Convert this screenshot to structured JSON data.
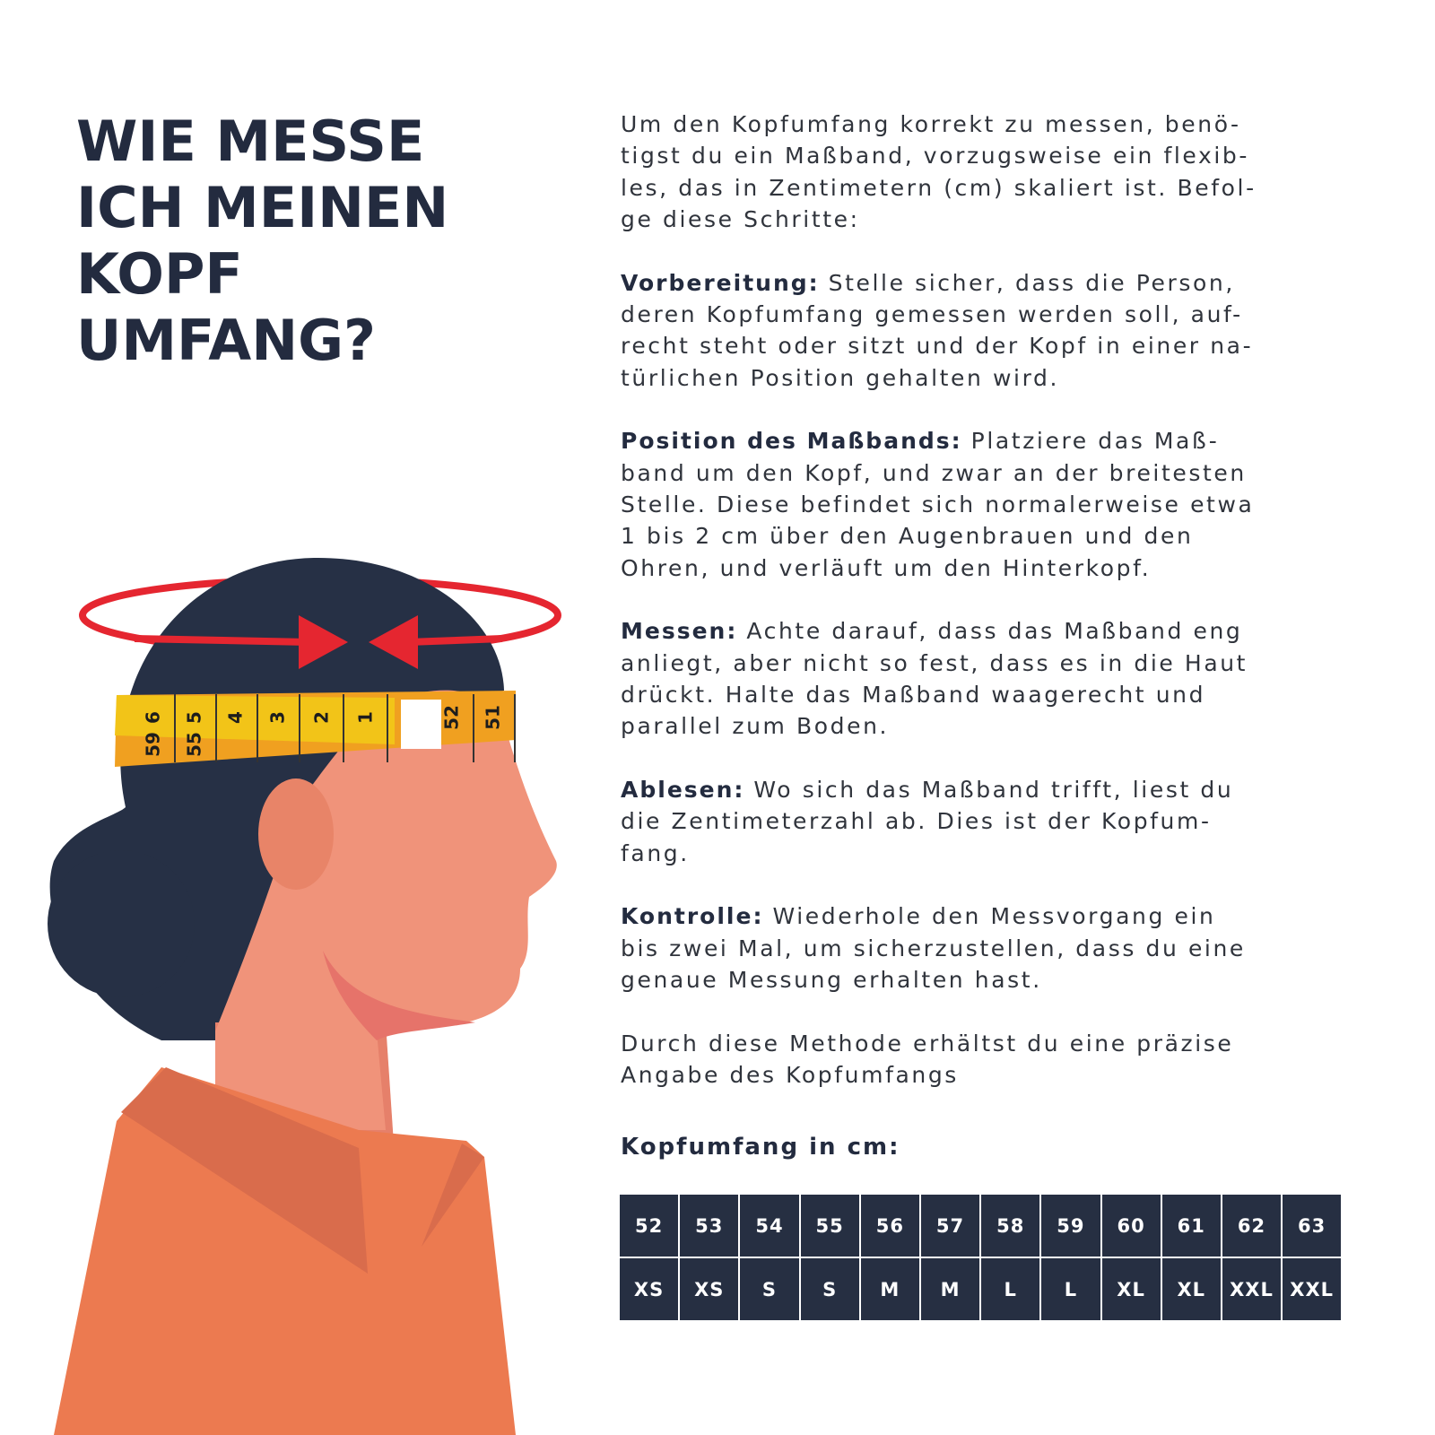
{
  "title": [
    "WIE MESSE",
    "ICH MEINEN",
    "KOPF",
    "UMFANG?"
  ],
  "intro": [
    "Um den Kopfumfang korrekt zu messen, benö-",
    "tigst du ein Maßband, vorzugsweise ein flexib-",
    "les, das in Zentimetern (cm) skaliert ist. Befol-",
    "ge diese Schritte:"
  ],
  "steps": [
    {
      "lead": "Vorbereitung:",
      "lines": [
        "Stelle sicher, dass die Person,",
        "deren Kopfumfang gemessen werden soll, auf-",
        "recht steht oder sitzt und der Kopf in einer na-",
        "türlichen Position gehalten wird."
      ]
    },
    {
      "lead": "Position des Maßbands:",
      "lines": [
        "Platziere das Maß-",
        "band um den Kopf, und zwar an der breitesten",
        "Stelle. Diese befindet sich normalerweise etwa",
        "1 bis 2 cm über den Augenbrauen und den",
        "Ohren, und verläuft um den Hinterkopf."
      ]
    },
    {
      "lead": "Messen:",
      "lines": [
        "Achte darauf, dass das Maßband eng",
        "anliegt, aber nicht so fest, dass es in die Haut",
        "drückt. Halte das Maßband waagerecht und",
        "parallel zum Boden."
      ]
    },
    {
      "lead": "Ablesen:",
      "lines": [
        "Wo sich das Maßband trifft, liest du",
        "die Zentimeterzahl ab. Dies ist der Kopfum-",
        "fang."
      ]
    },
    {
      "lead": "Kontrolle:",
      "lines": [
        "Wiederhole den Messvorgang ein",
        "bis zwei Mal, um sicherzustellen, dass du eine",
        "genaue Messung erhalten hast."
      ]
    }
  ],
  "closing": [
    "Durch diese Methode erhältst du eine präzise",
    "Angabe des Kopfumfangs"
  ],
  "table": {
    "title": "Kopfumfang in cm:",
    "cm": [
      52,
      53,
      54,
      55,
      56,
      57,
      58,
      59,
      60,
      61,
      62,
      63
    ],
    "sizes": [
      "XS",
      "XS",
      "S",
      "S",
      "M",
      "M",
      "L",
      "L",
      "XL",
      "XL",
      "XXL",
      "XXL"
    ]
  },
  "tape_labels": [
    "6",
    "5",
    "4",
    "3",
    "2",
    "1",
    "52",
    "51"
  ],
  "tape_labels_lower": [
    "59",
    "55"
  ]
}
